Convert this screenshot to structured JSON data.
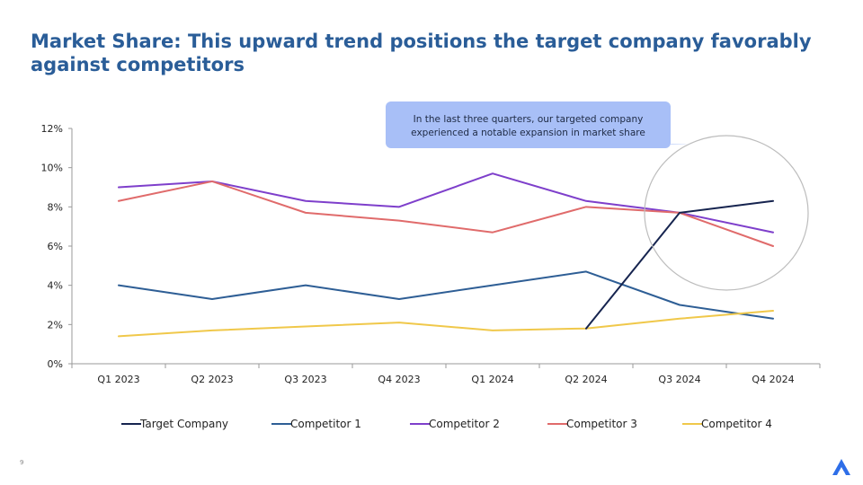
{
  "slide": {
    "title": "Market Share: This upward trend positions the target company favorably against competitors",
    "page_number": "9",
    "callout_text": "In the last three quarters, our targeted company experienced a notable expansion in market share"
  },
  "chart_data": {
    "type": "line",
    "categories": [
      "Q1 2023",
      "Q2 2023",
      "Q3 2023",
      "Q4 2023",
      "Q1 2024",
      "Q2 2024",
      "Q3 2024",
      "Q4 2024"
    ],
    "ylim": [
      0,
      12
    ],
    "yticks": [
      0,
      2,
      4,
      6,
      8,
      10,
      12
    ],
    "ytick_labels": [
      "0%",
      "2%",
      "4%",
      "6%",
      "8%",
      "10%",
      "12%"
    ],
    "grid": false,
    "legend_position": "bottom",
    "series": [
      {
        "name": "Target Company",
        "color": "#16244f",
        "values": [
          null,
          null,
          null,
          null,
          null,
          1.8,
          7.7,
          8.3
        ]
      },
      {
        "name": "Competitor 1",
        "color": "#2e5e95",
        "values": [
          4.0,
          3.3,
          4.0,
          3.3,
          4.0,
          4.7,
          3.0,
          2.3
        ]
      },
      {
        "name": "Competitor 2",
        "color": "#7e3fcb",
        "values": [
          9.0,
          9.3,
          8.3,
          8.0,
          9.7,
          8.3,
          7.7,
          6.7
        ]
      },
      {
        "name": "Competitor 3",
        "color": "#e06b6b",
        "values": [
          8.3,
          9.3,
          7.7,
          7.3,
          6.7,
          8.0,
          7.7,
          6.0
        ]
      },
      {
        "name": "Competitor 4",
        "color": "#f0c84a",
        "values": [
          1.4,
          1.7,
          1.9,
          2.1,
          1.7,
          1.8,
          2.3,
          2.7
        ]
      }
    ]
  }
}
